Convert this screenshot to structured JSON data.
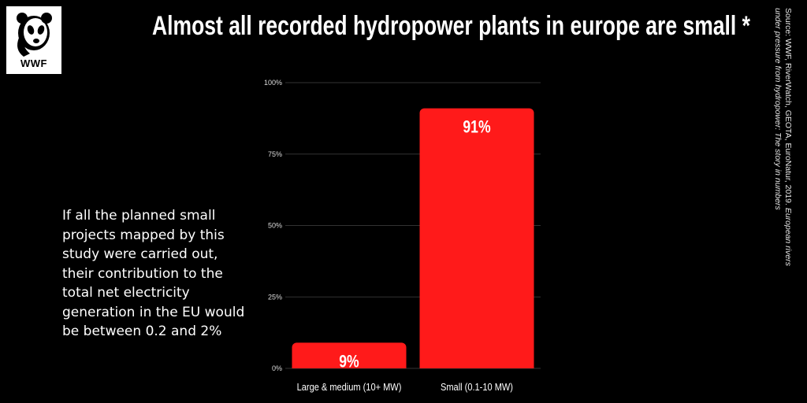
{
  "logo": {
    "text": "WWF"
  },
  "title": "Almost all recorded hydropower plants in europe are small *",
  "source": {
    "prefix": "Source: WWF, RiverWatch, GEOTA, EuroNatur, 2019. ",
    "publication": "European rivers under pressure from hydropower: The story in numbers"
  },
  "note": "If all the planned small projects mapped by this study were carried out, their contribution to the total net electricity generation in the EU would be between 0.2 and 2%",
  "colors": {
    "bar": "#ff1a1a",
    "background": "#000000",
    "grid": "#333333"
  },
  "chart_data": {
    "type": "bar",
    "categories": [
      "Large & medium (10+ MW)",
      "Small (0.1-10 MW)"
    ],
    "values": [
      9,
      91
    ],
    "data_labels": [
      "9%",
      "91%"
    ],
    "yticks": [
      "0%",
      "25%",
      "50%",
      "75%",
      "100%"
    ],
    "ylim": [
      0,
      100
    ],
    "grid": true
  }
}
